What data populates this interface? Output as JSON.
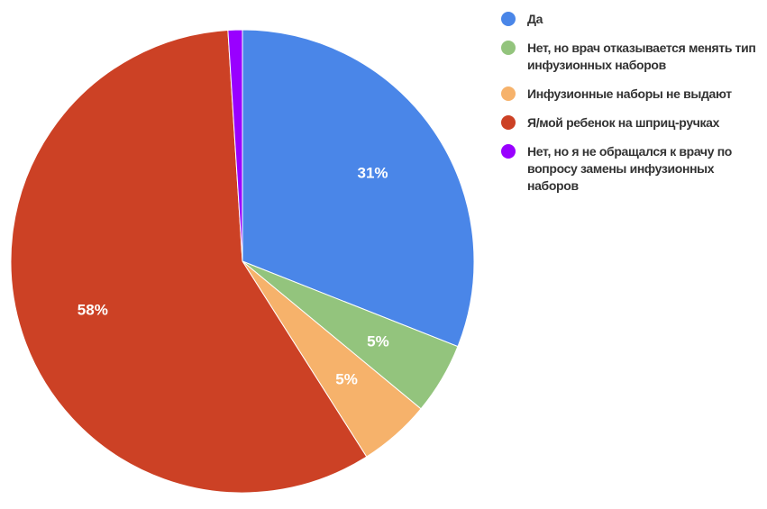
{
  "chart_data": {
    "type": "pie",
    "title": "",
    "slices": [
      {
        "label": "Да",
        "value": 31,
        "display": "31%",
        "color": "#4a86e8"
      },
      {
        "label": "Нет, но врач отказывается менять тип инфузионных наборов",
        "value": 5,
        "display": "5%",
        "color": "#93c47d"
      },
      {
        "label": "Инфузионные наборы не выдают",
        "value": 5,
        "display": "5%",
        "color": "#f6b26b"
      },
      {
        "label": "Я/мой ребенок на шприц-ручках",
        "value": 58,
        "display": "58%",
        "color": "#cc4125"
      },
      {
        "label": "Нет, но я не обращался к врачу по вопросу замены инфузионных наборов",
        "value": 1,
        "display": "",
        "color": "#9900ff"
      }
    ],
    "legend_position": "right",
    "start_angle": "12 o'clock",
    "direction": "clockwise"
  }
}
